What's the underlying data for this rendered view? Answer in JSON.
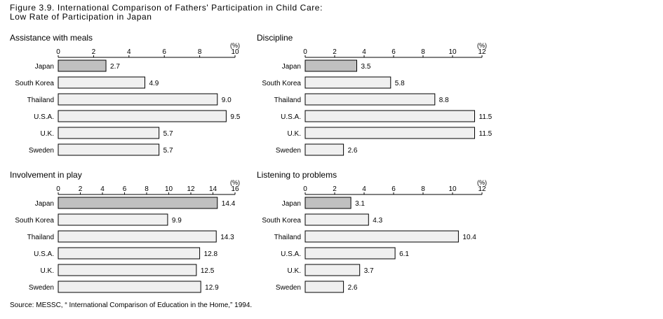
{
  "figure": {
    "title_line1": "Figure 3.9. International Comparison of Fathers' Participation in Child Care:",
    "title_line2": "Low Rate of Participation in Japan",
    "source": "Source: MESSC, “ International Comparison of Education in the Home,” 1994."
  },
  "colors": {
    "highlight": "#c0c0c0",
    "bar": "#f0f0f0",
    "stroke": "#000000"
  },
  "chart_data": [
    {
      "type": "bar",
      "orientation": "horizontal",
      "title": "Assistance with meals",
      "unit_label": "(%)",
      "categories": [
        "Japan",
        "South Korea",
        "Thailand",
        "U.S.A.",
        "U.K.",
        "Sweden"
      ],
      "values": [
        2.7,
        4.9,
        9.0,
        9.5,
        5.7,
        5.7
      ],
      "value_labels": [
        "2.7",
        "4.9",
        "9.0",
        "9.5",
        "5.7",
        "5.7"
      ],
      "xlim": [
        0,
        10
      ],
      "ticks": [
        0,
        2,
        4,
        6,
        8,
        10
      ],
      "highlight": "Japan"
    },
    {
      "type": "bar",
      "orientation": "horizontal",
      "title": "Discipline",
      "unit_label": "(%)",
      "categories": [
        "Japan",
        "South Korea",
        "Thailand",
        "U.S.A.",
        "U.K.",
        "Sweden"
      ],
      "values": [
        3.5,
        5.8,
        8.8,
        11.5,
        11.5,
        2.6
      ],
      "value_labels": [
        "3.5",
        "5.8",
        "8.8",
        "11.5",
        "11.5",
        "2.6"
      ],
      "xlim": [
        0,
        12
      ],
      "ticks": [
        0,
        2,
        4,
        6,
        8,
        10,
        12
      ],
      "highlight": "Japan"
    },
    {
      "type": "bar",
      "orientation": "horizontal",
      "title": "Involvement in play",
      "unit_label": "(%)",
      "categories": [
        "Japan",
        "South Korea",
        "Thailand",
        "U.S.A.",
        "U.K.",
        "Sweden"
      ],
      "values": [
        14.4,
        9.9,
        14.3,
        12.8,
        12.5,
        12.9
      ],
      "value_labels": [
        "14.4",
        "9.9",
        "14.3",
        "12.8",
        "12.5",
        "12.9"
      ],
      "xlim": [
        0,
        16
      ],
      "ticks": [
        0,
        2,
        4,
        6,
        8,
        10,
        12,
        14,
        16
      ],
      "highlight": "Japan"
    },
    {
      "type": "bar",
      "orientation": "horizontal",
      "title": "Listening to problems",
      "unit_label": "(%)",
      "categories": [
        "Japan",
        "South Korea",
        "Thailand",
        "U.S.A.",
        "U.K.",
        "Sweden"
      ],
      "values": [
        3.1,
        4.3,
        10.4,
        6.1,
        3.7,
        2.6
      ],
      "value_labels": [
        "3.1",
        "4.3",
        "10.4",
        "6.1",
        "3.7",
        "2.6"
      ],
      "xlim": [
        0,
        12
      ],
      "ticks": [
        0,
        2,
        4,
        6,
        8,
        10,
        12
      ],
      "highlight": "Japan"
    }
  ]
}
